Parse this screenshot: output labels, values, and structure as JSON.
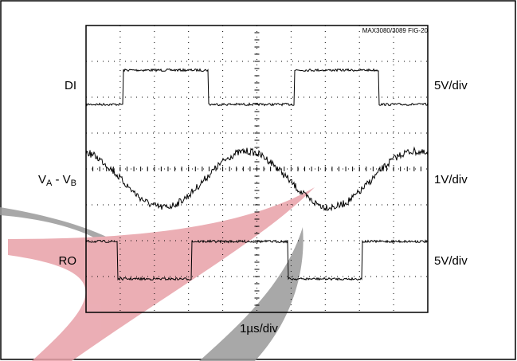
{
  "figure_id": "MAX3080/3089 FIG-20",
  "traces": [
    {
      "label": "DI",
      "scale": "5V/div"
    },
    {
      "label_parts": [
        "V",
        "A",
        " - V",
        "B"
      ],
      "scale": "1V/div"
    },
    {
      "label": "RO",
      "scale": "5V/div"
    }
  ],
  "time_scale": "1µs/div"
}
